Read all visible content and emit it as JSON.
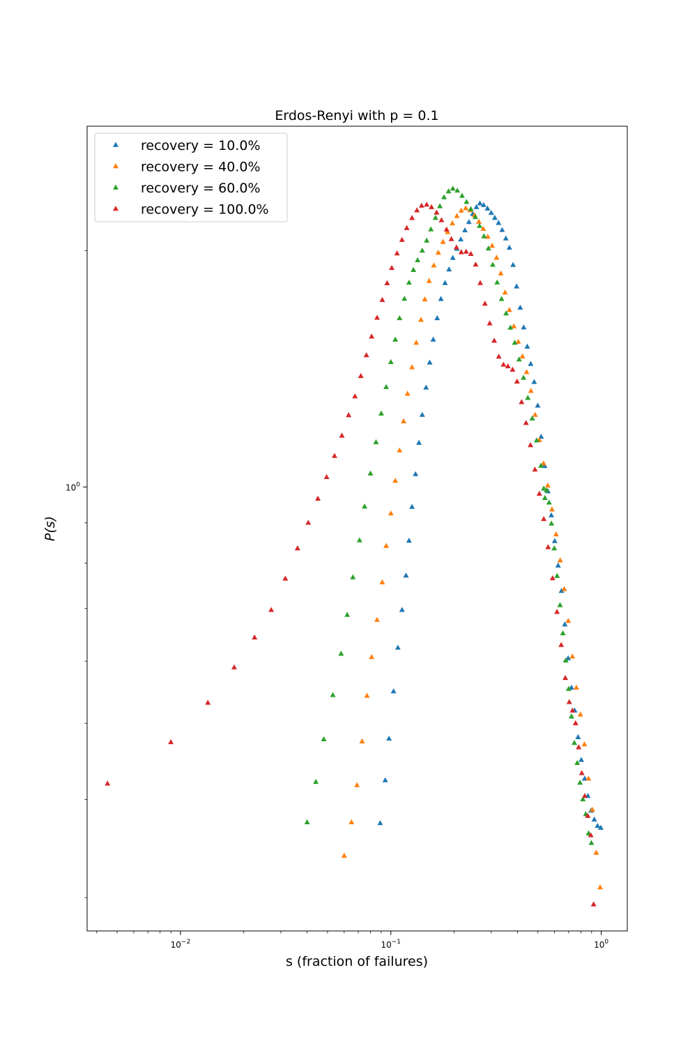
{
  "chart_data": {
    "type": "scatter",
    "title": "Erdos-Renyi with p = 0.1",
    "xlabel": "s (fraction of failures)",
    "ylabel": "P(s)",
    "xscale": "log",
    "yscale": "log",
    "xlim": [
      0.0036,
      1.33
    ],
    "ylim": [
      0.272,
      2.88
    ],
    "grid": false,
    "legend_position": "top-left",
    "marker": "triangle-up",
    "x_major_ticks": [
      {
        "value": 0.01,
        "base": "10",
        "exp": "−2"
      },
      {
        "value": 0.1,
        "base": "10",
        "exp": "−1"
      },
      {
        "value": 1,
        "base": "10",
        "exp": "0"
      }
    ],
    "y_major_ticks": [
      {
        "value": 1,
        "base": "10",
        "exp": "0"
      }
    ],
    "series": [
      {
        "name": "recovery = 10.0%",
        "color": "#1f77b4",
        "points": [
          [
            0.089,
            0.373
          ],
          [
            0.094,
            0.423
          ],
          [
            0.098,
            0.478
          ],
          [
            0.103,
            0.549
          ],
          [
            0.108,
            0.624
          ],
          [
            0.113,
            0.697
          ],
          [
            0.118,
            0.771
          ],
          [
            0.122,
            0.854
          ],
          [
            0.126,
            0.943
          ],
          [
            0.131,
            1.038
          ],
          [
            0.136,
            1.138
          ],
          [
            0.141,
            1.235
          ],
          [
            0.147,
            1.338
          ],
          [
            0.153,
            1.44
          ],
          [
            0.159,
            1.54
          ],
          [
            0.166,
            1.64
          ],
          [
            0.173,
            1.735
          ],
          [
            0.181,
            1.818
          ],
          [
            0.189,
            1.892
          ],
          [
            0.197,
            1.957
          ],
          [
            0.206,
            2.01
          ],
          [
            0.215,
            2.066
          ],
          [
            0.225,
            2.122
          ],
          [
            0.235,
            2.174
          ],
          [
            0.245,
            2.226
          ],
          [
            0.255,
            2.271
          ],
          [
            0.265,
            2.296
          ],
          [
            0.276,
            2.285
          ],
          [
            0.288,
            2.262
          ],
          [
            0.3,
            2.233
          ],
          [
            0.312,
            2.201
          ],
          [
            0.325,
            2.168
          ],
          [
            0.338,
            2.124
          ],
          [
            0.352,
            2.072
          ],
          [
            0.366,
            2.016
          ],
          [
            0.381,
            1.917
          ],
          [
            0.396,
            1.8
          ],
          [
            0.412,
            1.691
          ],
          [
            0.428,
            1.596
          ],
          [
            0.445,
            1.509
          ],
          [
            0.462,
            1.434
          ],
          [
            0.48,
            1.36
          ],
          [
            0.499,
            1.269
          ],
          [
            0.518,
            1.158
          ],
          [
            0.538,
            1.063
          ],
          [
            0.558,
            0.987
          ],
          [
            0.579,
            0.92
          ],
          [
            0.601,
            0.853
          ],
          [
            0.624,
            0.794
          ],
          [
            0.647,
            0.737
          ],
          [
            0.671,
            0.668
          ],
          [
            0.696,
            0.605
          ],
          [
            0.722,
            0.555
          ],
          [
            0.748,
            0.519
          ],
          [
            0.776,
            0.48
          ],
          [
            0.804,
            0.449
          ],
          [
            0.834,
            0.425
          ],
          [
            0.864,
            0.404
          ],
          [
            0.895,
            0.387
          ],
          [
            0.927,
            0.377
          ],
          [
            0.96,
            0.37
          ],
          [
            0.995,
            0.368
          ]
        ]
      },
      {
        "name": "recovery = 40.0%",
        "color": "#ff7f0e",
        "points": [
          [
            0.06,
            0.339
          ],
          [
            0.065,
            0.374
          ],
          [
            0.069,
            0.417
          ],
          [
            0.073,
            0.474
          ],
          [
            0.077,
            0.542
          ],
          [
            0.081,
            0.607
          ],
          [
            0.086,
            0.677
          ],
          [
            0.091,
            0.756
          ],
          [
            0.095,
            0.841
          ],
          [
            0.1,
            0.925
          ],
          [
            0.105,
            1.018
          ],
          [
            0.11,
            1.113
          ],
          [
            0.115,
            1.212
          ],
          [
            0.12,
            1.314
          ],
          [
            0.126,
            1.42
          ],
          [
            0.132,
            1.526
          ],
          [
            0.139,
            1.632
          ],
          [
            0.145,
            1.733
          ],
          [
            0.152,
            1.829
          ],
          [
            0.16,
            1.914
          ],
          [
            0.168,
            1.987
          ],
          [
            0.177,
            2.051
          ],
          [
            0.186,
            2.111
          ],
          [
            0.196,
            2.166
          ],
          [
            0.206,
            2.213
          ],
          [
            0.216,
            2.248
          ],
          [
            0.227,
            2.264
          ],
          [
            0.238,
            2.251
          ],
          [
            0.25,
            2.219
          ],
          [
            0.262,
            2.176
          ],
          [
            0.275,
            2.131
          ],
          [
            0.289,
            2.082
          ],
          [
            0.303,
            2.028
          ],
          [
            0.318,
            1.958
          ],
          [
            0.333,
            1.87
          ],
          [
            0.349,
            1.768
          ],
          [
            0.366,
            1.68
          ],
          [
            0.384,
            1.601
          ],
          [
            0.403,
            1.53
          ],
          [
            0.422,
            1.466
          ],
          [
            0.442,
            1.4
          ],
          [
            0.463,
            1.325
          ],
          [
            0.485,
            1.235
          ],
          [
            0.508,
            1.147
          ],
          [
            0.532,
            1.071
          ],
          [
            0.557,
            1.004
          ],
          [
            0.583,
            0.936
          ],
          [
            0.61,
            0.87
          ],
          [
            0.638,
            0.806
          ],
          [
            0.667,
            0.741
          ],
          [
            0.697,
            0.675
          ],
          [
            0.729,
            0.608
          ],
          [
            0.762,
            0.555
          ],
          [
            0.796,
            0.513
          ],
          [
            0.832,
            0.47
          ],
          [
            0.869,
            0.425
          ],
          [
            0.907,
            0.388
          ],
          [
            0.947,
            0.342
          ],
          [
            0.988,
            0.309
          ]
        ]
      },
      {
        "name": "recovery = 60.0%",
        "color": "#2ca02c",
        "points": [
          [
            0.04,
            0.374
          ],
          [
            0.044,
            0.421
          ],
          [
            0.048,
            0.477
          ],
          [
            0.053,
            0.543
          ],
          [
            0.058,
            0.613
          ],
          [
            0.062,
            0.687
          ],
          [
            0.066,
            0.767
          ],
          [
            0.071,
            0.855
          ],
          [
            0.075,
            0.944
          ],
          [
            0.08,
            1.04
          ],
          [
            0.085,
            1.14
          ],
          [
            0.09,
            1.24
          ],
          [
            0.095,
            1.34
          ],
          [
            0.1,
            1.442
          ],
          [
            0.105,
            1.54
          ],
          [
            0.11,
            1.64
          ],
          [
            0.116,
            1.736
          ],
          [
            0.122,
            1.82
          ],
          [
            0.128,
            1.889
          ],
          [
            0.134,
            1.944
          ],
          [
            0.141,
            1.999
          ],
          [
            0.148,
            2.059
          ],
          [
            0.155,
            2.128
          ],
          [
            0.163,
            2.201
          ],
          [
            0.171,
            2.277
          ],
          [
            0.179,
            2.338
          ],
          [
            0.188,
            2.379
          ],
          [
            0.197,
            2.398
          ],
          [
            0.207,
            2.384
          ],
          [
            0.218,
            2.348
          ],
          [
            0.229,
            2.306
          ],
          [
            0.24,
            2.258
          ],
          [
            0.252,
            2.206
          ],
          [
            0.264,
            2.149
          ],
          [
            0.277,
            2.085
          ],
          [
            0.291,
            2.012
          ],
          [
            0.305,
            1.918
          ],
          [
            0.32,
            1.821
          ],
          [
            0.336,
            1.735
          ],
          [
            0.353,
            1.663
          ],
          [
            0.37,
            1.595
          ],
          [
            0.388,
            1.526
          ],
          [
            0.407,
            1.453
          ],
          [
            0.427,
            1.377
          ],
          [
            0.448,
            1.298
          ],
          [
            0.47,
            1.222
          ],
          [
            0.493,
            1.146
          ],
          [
            0.517,
            1.064
          ],
          [
            0.533,
            0.995
          ],
          [
            0.54,
            0.968
          ],
          [
            0.55,
            0.99
          ],
          [
            0.565,
            0.955
          ],
          [
            0.58,
            0.898
          ],
          [
            0.598,
            0.835
          ],
          [
            0.617,
            0.77
          ],
          [
            0.637,
            0.707
          ],
          [
            0.657,
            0.651
          ],
          [
            0.678,
            0.601
          ],
          [
            0.7,
            0.553
          ],
          [
            0.722,
            0.51
          ],
          [
            0.745,
            0.472
          ],
          [
            0.769,
            0.445
          ],
          [
            0.793,
            0.42
          ],
          [
            0.818,
            0.4
          ],
          [
            0.844,
            0.383
          ],
          [
            0.871,
            0.362
          ],
          [
            0.898,
            0.352
          ]
        ]
      },
      {
        "name": "recovery = 100.0%",
        "color": "#d62728",
        "points": [
          [
            0.0045,
            0.419
          ],
          [
            0.009,
            0.473
          ],
          [
            0.0135,
            0.531
          ],
          [
            0.018,
            0.589
          ],
          [
            0.0225,
            0.643
          ],
          [
            0.027,
            0.697
          ],
          [
            0.0315,
            0.764
          ],
          [
            0.036,
            0.835
          ],
          [
            0.0405,
            0.9
          ],
          [
            0.045,
            0.966
          ],
          [
            0.0495,
            1.029
          ],
          [
            0.054,
            1.095
          ],
          [
            0.0585,
            1.162
          ],
          [
            0.063,
            1.234
          ],
          [
            0.0675,
            1.304
          ],
          [
            0.072,
            1.384
          ],
          [
            0.0765,
            1.471
          ],
          [
            0.081,
            1.554
          ],
          [
            0.086,
            1.642
          ],
          [
            0.091,
            1.73
          ],
          [
            0.096,
            1.817
          ],
          [
            0.101,
            1.9
          ],
          [
            0.107,
            1.983
          ],
          [
            0.113,
            2.063
          ],
          [
            0.119,
            2.136
          ],
          [
            0.126,
            2.2
          ],
          [
            0.133,
            2.25
          ],
          [
            0.14,
            2.281
          ],
          [
            0.148,
            2.288
          ],
          [
            0.156,
            2.271
          ],
          [
            0.165,
            2.235
          ],
          [
            0.174,
            2.186
          ],
          [
            0.184,
            2.127
          ],
          [
            0.194,
            2.068
          ],
          [
            0.205,
            2.018
          ],
          [
            0.216,
            1.99
          ],
          [
            0.228,
            1.993
          ],
          [
            0.24,
            1.98
          ],
          [
            0.253,
            1.919
          ],
          [
            0.266,
            1.818
          ],
          [
            0.28,
            1.711
          ],
          [
            0.295,
            1.615
          ],
          [
            0.31,
            1.535
          ],
          [
            0.326,
            1.465
          ],
          [
            0.343,
            1.431
          ],
          [
            0.36,
            1.424
          ],
          [
            0.379,
            1.41
          ],
          [
            0.398,
            1.362
          ],
          [
            0.418,
            1.282
          ],
          [
            0.439,
            1.206
          ],
          [
            0.461,
            1.13
          ],
          [
            0.484,
            1.052
          ],
          [
            0.508,
            0.98
          ],
          [
            0.533,
            0.91
          ],
          [
            0.559,
            0.838
          ],
          [
            0.587,
            0.765
          ],
          [
            0.616,
            0.693
          ],
          [
            0.645,
            0.629
          ],
          [
            0.675,
            0.571
          ],
          [
            0.705,
            0.532
          ],
          [
            0.73,
            0.519
          ],
          [
            0.755,
            0.5
          ],
          [
            0.781,
            0.466
          ],
          [
            0.808,
            0.432
          ],
          [
            0.835,
            0.404
          ],
          [
            0.863,
            0.381
          ],
          [
            0.892,
            0.36
          ],
          [
            0.92,
            0.294
          ]
        ]
      }
    ]
  }
}
